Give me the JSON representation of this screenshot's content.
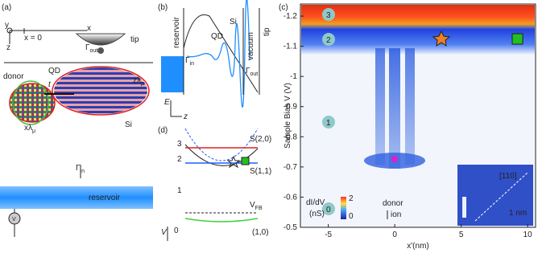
{
  "panel_a": {
    "label": "(a)",
    "axis_y": "y",
    "axis_x": "x",
    "origin": "x = 0",
    "axis_z": "z",
    "tip": "tip",
    "gamma_out": {
      "symbol": "Γ",
      "sub": "out"
    },
    "qd": "QD",
    "donor": "donor",
    "coupling": "t",
    "z_lambda": {
      "symbol": "zλ",
      "sub": "μ"
    },
    "x_lambda": {
      "symbol": "xλ",
      "sub": "μ"
    },
    "si": "Si",
    "gamma_in": {
      "symbol": "Γ",
      "sub": "in"
    },
    "reservoir": "reservoir",
    "voltage": "V"
  },
  "panel_b": {
    "label": "(b)",
    "reservoir": "reservoir",
    "qd": "QD",
    "si": "Si",
    "vacuum": "vacuum",
    "tip": "tip",
    "gamma_in": {
      "symbol": "Γ",
      "sub": "in"
    },
    "gamma_out": {
      "symbol": "Γ",
      "sub": "out"
    },
    "energy": "E",
    "z": "z"
  },
  "panel_d": {
    "label": "(d)",
    "levels": [
      "3",
      "2",
      "1",
      "0"
    ],
    "s20": "S(2,0)",
    "s11": "S(1,1)",
    "s10": "(1,0)",
    "vfb": {
      "symbol": "V",
      "sub": "FB"
    },
    "v": "V"
  },
  "chart_data": {
    "type": "heatmap",
    "label": "(c)",
    "y_label": "Sample Bias V (V)",
    "x_label": "x'(nm)",
    "xlim": [
      -7.1,
      10.6
    ],
    "ylim": [
      -0.5,
      -1.24
    ],
    "xticks": [
      -5,
      0,
      5,
      10
    ],
    "yticks": [
      -1.2,
      -1.1,
      -1.0,
      -0.9,
      -0.8,
      -0.7,
      -0.6,
      -0.5
    ],
    "colorbar": {
      "title": "dI/dV",
      "unit": "(nS)",
      "ticks": [
        2,
        0
      ]
    },
    "state_labels": [
      "3",
      "2",
      "1",
      "0"
    ],
    "donor": "donor",
    "ion": "ion",
    "inset_direction": "[110]",
    "scale": "1 nm"
  }
}
